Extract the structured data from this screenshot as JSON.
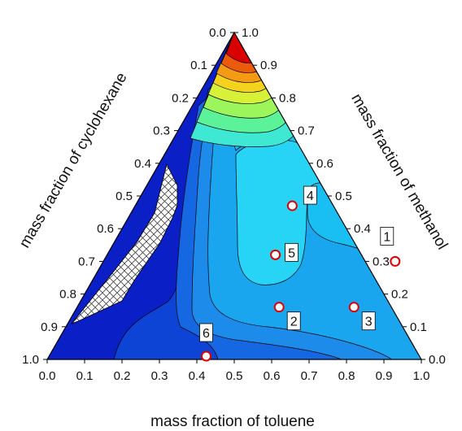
{
  "chart_data": {
    "type": "ternary-contour",
    "axes": {
      "bottom": {
        "label": "mass fraction of toluene",
        "ticks": [
          "0.0",
          "0.1",
          "0.2",
          "0.3",
          "0.4",
          "0.5",
          "0.6",
          "0.7",
          "0.8",
          "0.9",
          "1.0"
        ]
      },
      "right": {
        "label": "mass fraction of methanol",
        "ticks": [
          "0.0",
          "0.1",
          "0.2",
          "0.3",
          "0.4",
          "0.5",
          "0.6",
          "0.7",
          "0.8",
          "0.9",
          "1.0"
        ]
      },
      "left": {
        "label": "mass fraction of cyclohexane",
        "ticks": [
          "0.0",
          "0.1",
          "0.2",
          "0.3",
          "0.4",
          "0.5",
          "0.6",
          "0.7",
          "0.8",
          "0.9",
          "1.0"
        ]
      }
    },
    "points": [
      {
        "label": "1",
        "toluene": 0.78,
        "methanol": 0.3,
        "cyclohexane": -0.08
      },
      {
        "label": "2",
        "toluene": 0.54,
        "methanol": 0.16,
        "cyclohexane": 0.3
      },
      {
        "label": "3",
        "toluene": 0.74,
        "methanol": 0.16,
        "cyclohexane": 0.1
      },
      {
        "label": "4",
        "toluene": 0.42,
        "methanol": 0.47,
        "cyclohexane": 0.11
      },
      {
        "label": "5",
        "toluene": 0.45,
        "methanol": 0.32,
        "cyclohexane": 0.23
      },
      {
        "label": "6",
        "toluene": 0.42,
        "methanol": 0.01,
        "cyclohexane": 0.57
      }
    ],
    "colors": {
      "low": "#0a22c8",
      "mid": "#19a9ee",
      "plateau": "#27dcf6",
      "high": "#d80000",
      "hatch_region": "immiscible (hatched)"
    },
    "grid": false,
    "legend": "none"
  }
}
